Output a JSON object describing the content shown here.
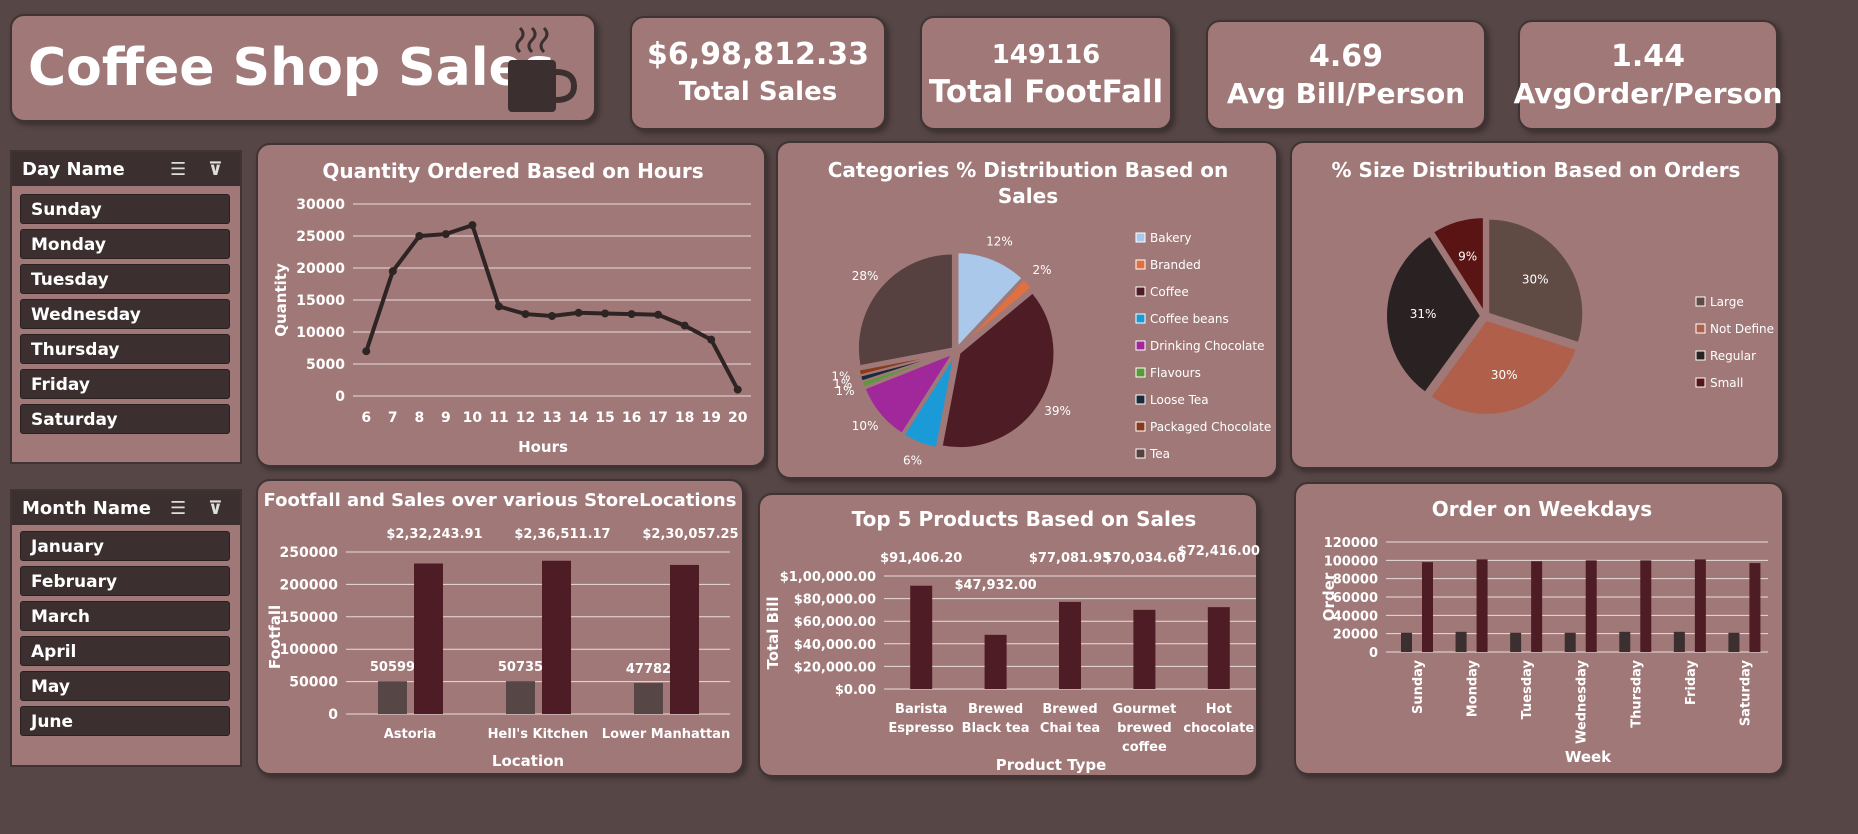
{
  "header": {
    "title": "Coffee Shop Sales",
    "icon": "coffee-cup-icon"
  },
  "kpis": [
    {
      "value": "$6,98,812.33",
      "label": "Total Sales"
    },
    {
      "value": "149116",
      "label": "Total FootFall"
    },
    {
      "value": "4.69",
      "label": "Avg Bill/Person"
    },
    {
      "value": "1.44",
      "label": "AvgOrder/Person"
    }
  ],
  "slicers": {
    "day": {
      "title": "Day Name",
      "items": [
        "Sunday",
        "Monday",
        "Tuesday",
        "Wednesday",
        "Thursday",
        "Friday",
        "Saturday"
      ]
    },
    "month": {
      "title": "Month Name",
      "items": [
        "January",
        "February",
        "March",
        "April",
        "May",
        "June"
      ]
    }
  },
  "colors": {
    "background": "#574646",
    "card": "#a07878",
    "dark": "#3b2f2f",
    "bar": "#4e1c24",
    "bar_dark": "#574646"
  },
  "chart_data": [
    {
      "type": "line",
      "title": "Quantity Ordered Based on Hours",
      "xlabel": "Hours",
      "ylabel": "Quantity",
      "x": [
        6,
        7,
        8,
        9,
        10,
        11,
        12,
        13,
        14,
        15,
        16,
        17,
        18,
        19,
        20
      ],
      "values": [
        7000,
        19500,
        25000,
        25300,
        26700,
        14000,
        12800,
        12500,
        13000,
        12900,
        12800,
        12700,
        11000,
        8800,
        1000
      ],
      "ylim": [
        0,
        30000
      ],
      "yticks": [
        "0",
        "5000",
        "10000",
        "15000",
        "20000",
        "25000",
        "30000"
      ]
    },
    {
      "type": "pie",
      "title": "Categories % Distribution Based on Sales",
      "slices": [
        {
          "name": "Bakery",
          "value": 12,
          "label": "12%",
          "color": "#a9c8ea"
        },
        {
          "name": "Branded",
          "value": 2,
          "label": "2%",
          "color": "#e07040"
        },
        {
          "name": "Coffee",
          "value": 39,
          "label": "39%",
          "color": "#4e1c24"
        },
        {
          "name": "Coffee beans",
          "value": 6,
          "label": "6%",
          "color": "#1a9ad6"
        },
        {
          "name": "Drinking Chocolate",
          "value": 10,
          "label": "10%",
          "color": "#a0289a"
        },
        {
          "name": "Flavours",
          "value": 1,
          "label": "1%",
          "color": "#5a9a3a"
        },
        {
          "name": "Loose Tea",
          "value": 1,
          "label": "1%",
          "color": "#1a2a3a"
        },
        {
          "name": "Packaged Chocolate",
          "value": 1,
          "label": "1%",
          "color": "#8a3a1a"
        },
        {
          "name": "Tea",
          "value": 28,
          "label": "28%",
          "color": "#574040"
        }
      ]
    },
    {
      "type": "pie",
      "title": "% Size Distribution Based on Orders",
      "slices": [
        {
          "name": "Large",
          "value": 30,
          "label": "30%",
          "color": "#5f4a44"
        },
        {
          "name": "Not Define",
          "value": 30,
          "label": "30%",
          "color": "#b0604a"
        },
        {
          "name": "Regular",
          "value": 31,
          "label": "31%",
          "color": "#2a2222"
        },
        {
          "name": "Small",
          "value": 9,
          "label": "9%",
          "color": "#5a1414"
        }
      ]
    },
    {
      "type": "bar",
      "title": "Footfall and Sales over various StoreLocations",
      "xlabel": "Location",
      "ylabel": "Footfall",
      "categories": [
        "Astoria",
        "Hell's Kitchen",
        "Lower Manhattan"
      ],
      "series": [
        {
          "values": [
            50599,
            50735,
            47782
          ],
          "labels": [
            "50599",
            "50735",
            "47782"
          ]
        },
        {
          "values": [
            232243.91,
            236511.17,
            230057.25
          ],
          "labels": [
            "$2,32,243.91",
            "$2,36,511.17",
            "$2,30,057.25"
          ]
        }
      ],
      "ylim": [
        0,
        250000
      ],
      "yticks": [
        "0",
        "50000",
        "100000",
        "150000",
        "200000",
        "250000"
      ]
    },
    {
      "type": "bar",
      "title": "Top 5 Products Based on Sales",
      "xlabel": "Product Type",
      "ylabel": "Total Bill",
      "categories": [
        [
          "Barista",
          "Espresso"
        ],
        [
          "Brewed",
          "Black tea"
        ],
        [
          "Brewed",
          "Chai tea"
        ],
        [
          "Gourmet",
          "brewed",
          "coffee"
        ],
        [
          "Hot",
          "chocolate"
        ]
      ],
      "values": [
        91406.2,
        47932.0,
        77081.95,
        70034.6,
        72416.0
      ],
      "labels": [
        "$91,406.20",
        "$47,932.00",
        "$77,081.95",
        "$70,034.60",
        "$72,416.00"
      ],
      "ylim": [
        0,
        100000
      ],
      "yticks": [
        "$0.00",
        "$20,000.00",
        "$40,000.00",
        "$60,000.00",
        "$80,000.00",
        "$1,00,000.00"
      ]
    },
    {
      "type": "bar",
      "title": "Order on Weekdays",
      "xlabel": "Week",
      "ylabel": "Order",
      "categories": [
        "Sunday",
        "Monday",
        "Tuesday",
        "Wednesday",
        "Thursday",
        "Friday",
        "Saturday"
      ],
      "series": [
        {
          "values": [
            21000,
            22000,
            21000,
            21000,
            22000,
            22000,
            21000
          ]
        },
        {
          "values": [
            98000,
            101000,
            99000,
            100000,
            100000,
            101000,
            97000
          ]
        }
      ],
      "ylim": [
        0,
        120000
      ],
      "yticks": [
        "0",
        "20000",
        "40000",
        "60000",
        "80000",
        "100000",
        "120000"
      ]
    }
  ]
}
